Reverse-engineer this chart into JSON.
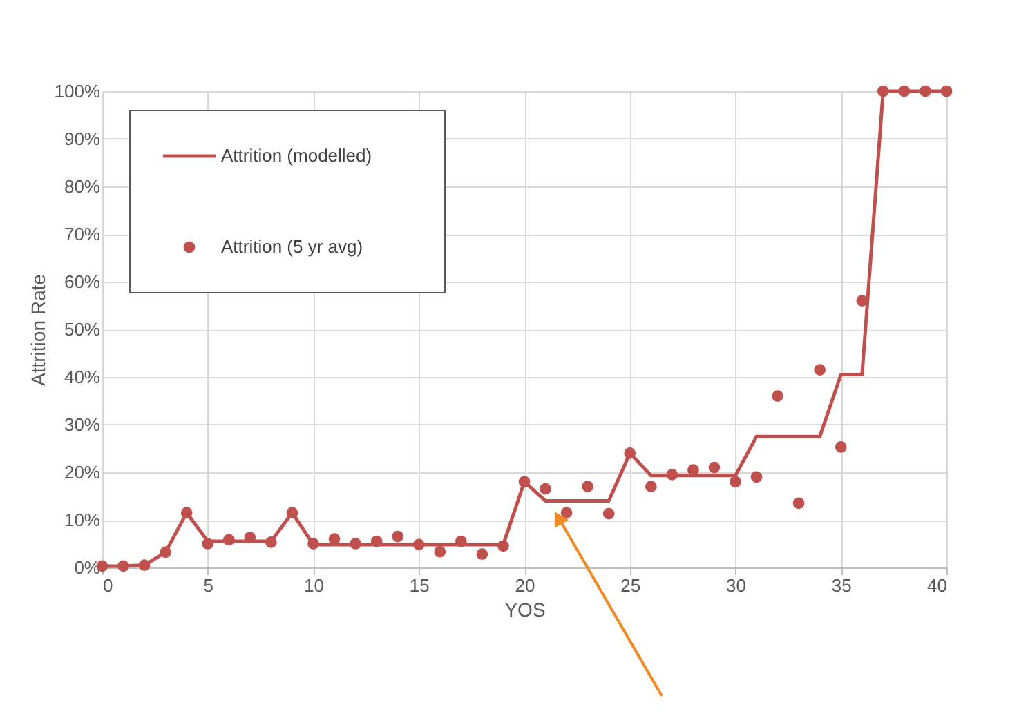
{
  "chart_data": {
    "type": "line",
    "xlabel": "YOS",
    "ylabel": "Attrition Rate",
    "xlim": [
      0,
      40
    ],
    "xticks": [
      0,
      5,
      10,
      15,
      20,
      25,
      30,
      35,
      40
    ],
    "ylim": [
      0,
      100
    ],
    "yticks": [
      {
        "value": 0,
        "label": "0%"
      },
      {
        "value": 10,
        "label": "10%"
      },
      {
        "value": 20,
        "label": "20%"
      },
      {
        "value": 30,
        "label": "30%"
      },
      {
        "value": 40,
        "label": "40%"
      },
      {
        "value": 50,
        "label": "50%"
      },
      {
        "value": 60,
        "label": "60%"
      },
      {
        "value": 70,
        "label": "70%"
      },
      {
        "value": 80,
        "label": "80%"
      },
      {
        "value": 90,
        "label": "90%"
      },
      {
        "value": 100,
        "label": "100%"
      }
    ],
    "x": [
      0,
      1,
      2,
      3,
      4,
      5,
      6,
      7,
      8,
      9,
      10,
      11,
      12,
      13,
      14,
      15,
      16,
      17,
      18,
      19,
      20,
      21,
      22,
      23,
      24,
      25,
      26,
      27,
      28,
      29,
      30,
      31,
      32,
      33,
      34,
      35,
      36,
      37,
      38,
      39,
      40
    ],
    "series": [
      {
        "name": "Attrition (modelled)",
        "marker": "none",
        "color": "#c0504d",
        "values": [
          0.3,
          0.3,
          0.5,
          3.2,
          11.5,
          5.5,
          5.5,
          5.5,
          5.5,
          11.5,
          4.8,
          4.8,
          4.8,
          4.8,
          4.8,
          4.8,
          4.8,
          4.8,
          4.8,
          4.8,
          18,
          14,
          14,
          14,
          14,
          24,
          19.3,
          19.3,
          19.3,
          19.3,
          19.3,
          27.5,
          27.5,
          27.5,
          27.5,
          40.5,
          40.5,
          100,
          100,
          100,
          100
        ]
      },
      {
        "name": "Attrition (5 yr avg)",
        "type": "scatter",
        "marker": "circle",
        "color": "#c0504d",
        "values": [
          0.3,
          0.3,
          0.5,
          3.2,
          11.5,
          5,
          5.8,
          6.3,
          5.3,
          11.5,
          5,
          6,
          5,
          5.5,
          6.5,
          4.8,
          3.3,
          5.5,
          2.8,
          4.5,
          18,
          16.5,
          11.5,
          17,
          11.3,
          24,
          17,
          19.5,
          20.5,
          21,
          18,
          19,
          36,
          13.5,
          41.5,
          25.3,
          56,
          100,
          100,
          100,
          100
        ]
      }
    ],
    "grid": true,
    "legend": "top left"
  }
}
